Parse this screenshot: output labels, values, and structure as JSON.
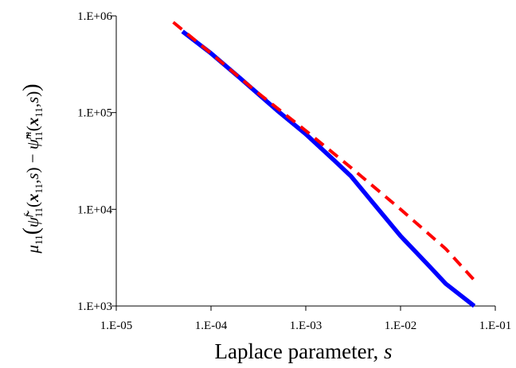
{
  "chart_data": {
    "type": "line",
    "x_scale": "log",
    "y_scale": "log",
    "xlim": [
      1e-05,
      0.1
    ],
    "ylim": [
      1000,
      1000000
    ],
    "x_ticks": [
      1e-05,
      0.0001,
      0.001,
      0.01,
      0.1
    ],
    "x_tick_labels": [
      "1.E-05",
      "1.E-04",
      "1.E-03",
      "1.E-02",
      "1.E-01"
    ],
    "y_ticks": [
      1000,
      10000,
      100000,
      1000000
    ],
    "y_tick_labels": [
      "1.E+03",
      "1.E+04",
      "1.E+05",
      "1.E+06"
    ],
    "xlabel_text": "Laplace parameter, ",
    "xlabel_var": "s",
    "ylabel": "μ11(ψ̃11f(x11,s) − ψ̃11m(x11,s))",
    "grid": false,
    "series": [
      {
        "color": "#0000ff",
        "style": "solid",
        "x": [
          5e-05,
          0.0001,
          0.0002,
          0.0005,
          0.001,
          0.002,
          0.003,
          0.005,
          0.01,
          0.02,
          0.03,
          0.06
        ],
        "y": [
          690000,
          410000,
          230000,
          105000,
          60000,
          32000,
          22000,
          12000,
          5300,
          2600,
          1700,
          1000
        ]
      },
      {
        "color": "#ff0000",
        "style": "dashed",
        "x": [
          4e-05,
          0.0001,
          0.0003,
          0.001,
          0.003,
          0.01,
          0.03,
          0.06
        ],
        "y": [
          860000,
          410000,
          165000,
          65000,
          27000,
          10000,
          3900,
          1850
        ]
      }
    ]
  }
}
